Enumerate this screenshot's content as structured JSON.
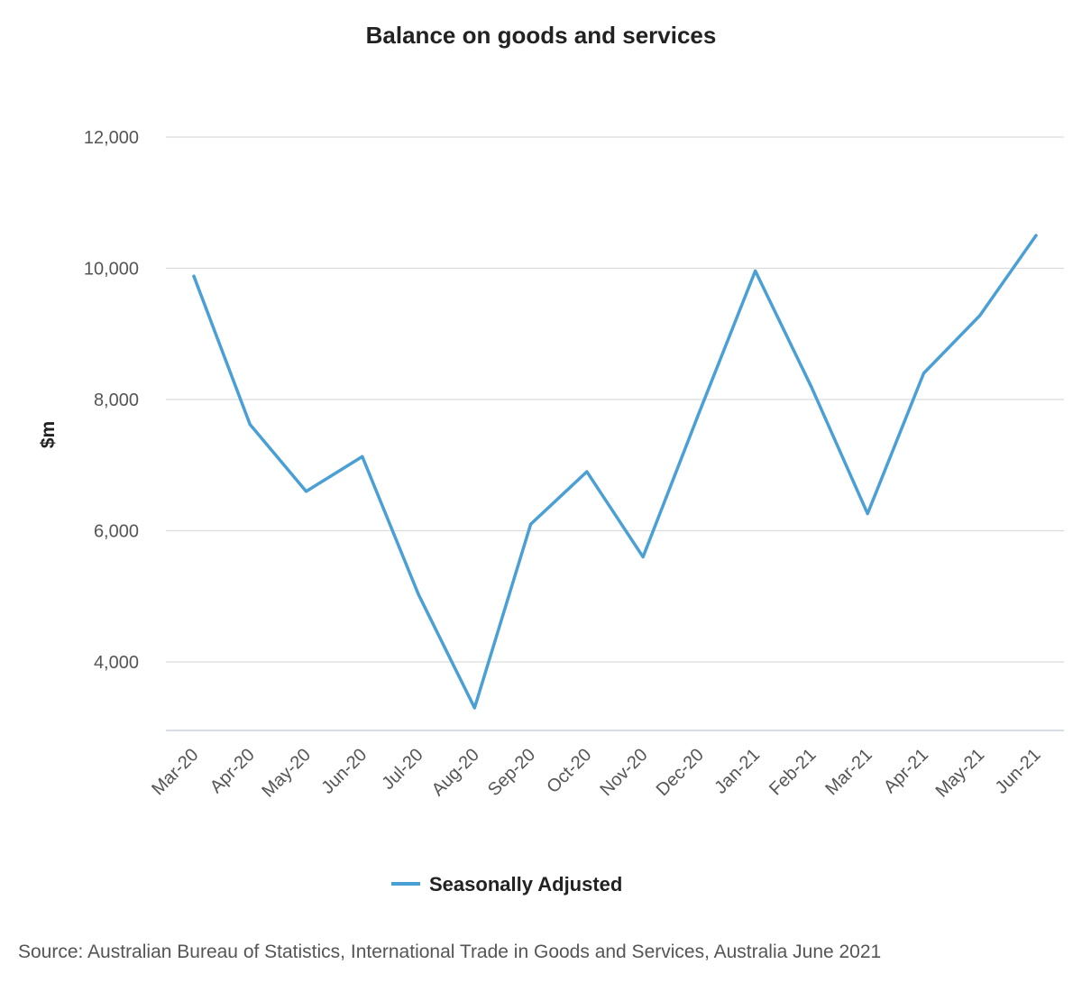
{
  "chart_data": {
    "type": "line",
    "title": "Balance on goods and services",
    "ylabel": "$m",
    "xlabel": "",
    "ylim": [
      3000,
      12500
    ],
    "yticks": [
      4000,
      6000,
      8000,
      10000,
      12000
    ],
    "ytick_labels": [
      "4,000",
      "6,000",
      "8,000",
      "10,000",
      "12,000"
    ],
    "categories": [
      "Mar-20",
      "Apr-20",
      "May-20",
      "Jun-20",
      "Jul-20",
      "Aug-20",
      "Sep-20",
      "Oct-20",
      "Nov-20",
      "Dec-20",
      "Jan-21",
      "Feb-21",
      "Mar-21",
      "Apr-21",
      "May-21",
      "Jun-21"
    ],
    "series": [
      {
        "name": "Seasonally Adjusted",
        "color": "#4a9fd4",
        "values": [
          9880,
          7620,
          6600,
          7130,
          5030,
          3300,
          6100,
          6900,
          5600,
          7800,
          9960,
          8190,
          6260,
          8400,
          9280,
          10500
        ]
      }
    ],
    "grid": true,
    "legend_position": "bottom"
  },
  "source": "Source: Australian Bureau of Statistics, International Trade in Goods and Services, Australia June 2021"
}
